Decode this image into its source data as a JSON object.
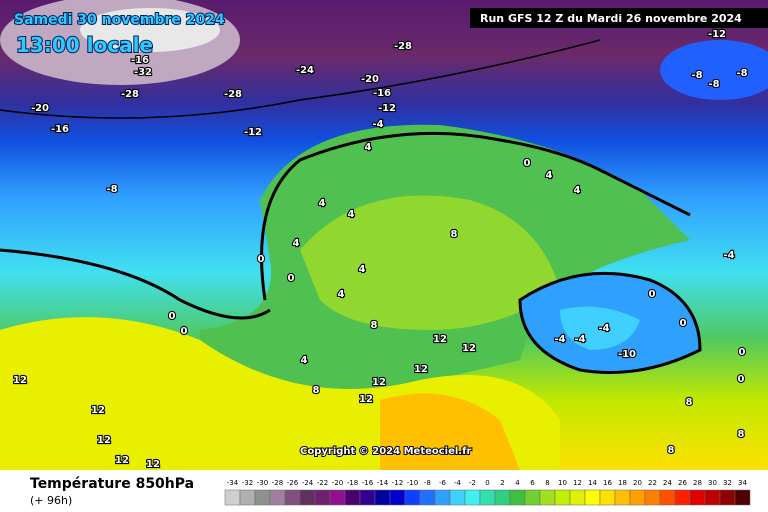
{
  "header": {
    "date": "Samedi 30 novembre 2024",
    "time": "13:00 locale",
    "run": "Run GFS 12 Z du Mardi 26 novembre 2024"
  },
  "footer": {
    "title": "Température 850hPa",
    "lead": "(+ 96h)",
    "copyright": "Copyright © 2024 Meteociel.fr"
  },
  "colorbar": {
    "ticks": [
      -34,
      -32,
      -30,
      -28,
      -26,
      -24,
      -22,
      -20,
      -18,
      -16,
      -14,
      -12,
      -10,
      -8,
      -6,
      -4,
      -2,
      0,
      2,
      4,
      6,
      8,
      10,
      12,
      14,
      16,
      18,
      20,
      22,
      24,
      26,
      28,
      30,
      32,
      34
    ],
    "colors": [
      "#d0d0d0",
      "#b0b0b0",
      "#909090",
      "#a080a0",
      "#805080",
      "#603060",
      "#702070",
      "#901090",
      "#4a0070",
      "#300090",
      "#0000a0",
      "#0000d0",
      "#1040ff",
      "#2070ff",
      "#30a0ff",
      "#40d0ff",
      "#40f0f0",
      "#30e0b0",
      "#30d080",
      "#40c040",
      "#70d030",
      "#a0e020",
      "#c0f000",
      "#e0f000",
      "#ffff00",
      "#ffe000",
      "#ffc000",
      "#ffa000",
      "#ff8000",
      "#ff5000",
      "#ff2000",
      "#e00000",
      "#c00000",
      "#900000",
      "#500000"
    ]
  },
  "contour_labels": [
    -28,
    -24,
    -20,
    -16,
    -12,
    -12,
    -4,
    4,
    -20,
    -16,
    -8,
    -28,
    -32,
    -16,
    -28,
    -12,
    -8,
    -8,
    -8,
    0,
    4,
    4,
    4,
    4,
    4,
    0,
    0,
    4,
    4,
    8,
    8,
    4,
    8,
    12,
    12,
    12,
    12,
    12,
    12,
    12,
    12,
    12,
    12,
    0,
    0,
    -4,
    -4,
    -4,
    -10,
    0,
    0,
    0,
    0,
    -4,
    8,
    8,
    8
  ]
}
